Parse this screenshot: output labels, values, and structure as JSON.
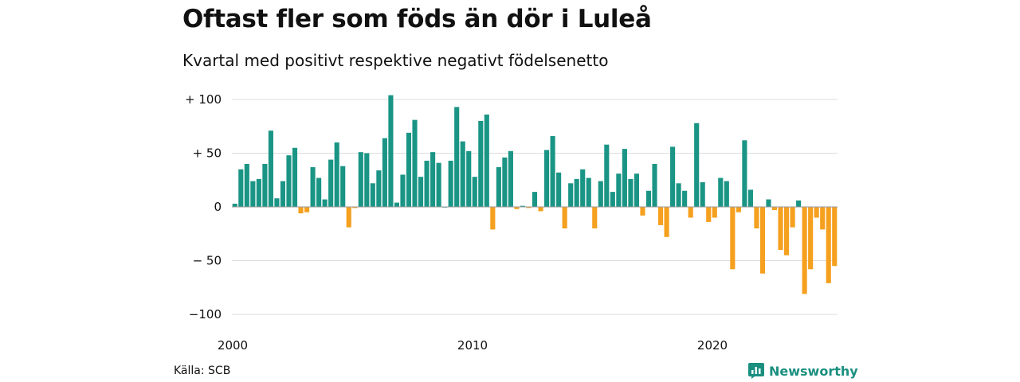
{
  "title": "Oftast fler som föds än dör i Luleå",
  "subtitle": "Kvartal med positivt respektive negativt födelsenetto",
  "source": "Källa: SCB",
  "brand": {
    "name": "Newsworthy",
    "icon": "newsworthy-logo-icon"
  },
  "colors": {
    "positive": "#1a9585",
    "negative": "#f5a01e",
    "grid": "#dddddd",
    "text": "#111111"
  },
  "chart_data": {
    "type": "bar",
    "x_start": 2000,
    "x_step": 0.25,
    "x_ticks": [
      2000,
      2010,
      2020
    ],
    "x_tick_labels": [
      "2000",
      "2010",
      "2020"
    ],
    "y_ticks": [
      100,
      50,
      0,
      -50,
      -100
    ],
    "y_tick_labels": [
      "+ 100",
      "+  50",
      "0",
      "− 50",
      "−100"
    ],
    "ylim": [
      -100,
      100
    ],
    "grid": true,
    "values": [
      3,
      35,
      40,
      24,
      26,
      40,
      71,
      8,
      24,
      48,
      55,
      -6,
      -5,
      37,
      27,
      7,
      44,
      60,
      38,
      -19,
      -1,
      51,
      50,
      22,
      34,
      64,
      104,
      4,
      30,
      69,
      81,
      28,
      43,
      51,
      41,
      0,
      43,
      93,
      61,
      52,
      28,
      80,
      86,
      -21,
      37,
      46,
      52,
      -2,
      1,
      -1,
      14,
      -4,
      53,
      66,
      32,
      -20,
      22,
      26,
      35,
      27,
      -20,
      24,
      58,
      14,
      31,
      54,
      26,
      31,
      -8,
      15,
      40,
      -17,
      -28,
      56,
      22,
      15,
      -10,
      78,
      23,
      -14,
      -10,
      27,
      24,
      -58,
      -5,
      62,
      16,
      -20,
      -62,
      7,
      -3,
      -40,
      -45,
      -19,
      6,
      -81,
      -58,
      -10,
      -21,
      -71,
      -55
    ]
  }
}
